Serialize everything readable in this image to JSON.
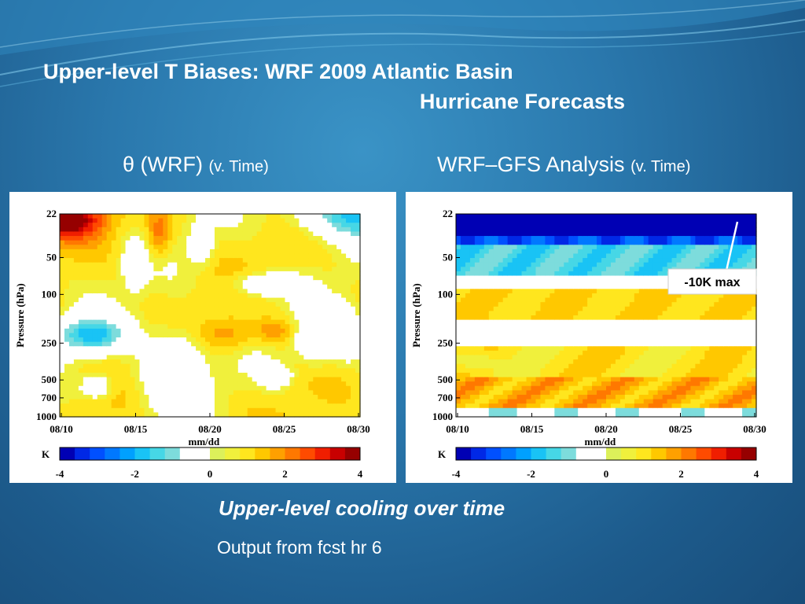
{
  "slide": {
    "title_line1": "Upper-level T Biases: WRF 2009 Atlantic Basin",
    "title_line2": "Hurricane Forecasts",
    "subtitle": "Upper-level cooling over time",
    "note": "Output from fcst hr 6"
  },
  "panels": [
    {
      "heading_main": "θ (WRF)",
      "heading_suffix": "(v. Time)"
    },
    {
      "heading_main": "WRF–GFS Analysis",
      "heading_suffix": "(v. Time)",
      "annotation": "-10K max"
    }
  ],
  "colors": {
    "colorbar": [
      "#0000b4",
      "#0028e6",
      "#0050ff",
      "#0078ff",
      "#00a0ff",
      "#19c3f5",
      "#46d7e6",
      "#7ddcdc",
      "#ffffff",
      "#ffffff",
      "#dcf05a",
      "#f0f03c",
      "#ffe61e",
      "#ffc800",
      "#ffa000",
      "#ff7800",
      "#ff4b00",
      "#f01e00",
      "#c80000",
      "#960000"
    ]
  },
  "chart_data": [
    {
      "type": "heatmap",
      "title": "",
      "xlabel": "mm/dd",
      "ylabel": "Pressure (hPa)",
      "x_ticks": [
        "08/10",
        "08/15",
        "08/20",
        "08/25",
        "08/30"
      ],
      "y_ticks": [
        "22",
        "50",
        "100",
        "250",
        "500",
        "700",
        "1000"
      ],
      "y_scale": "log",
      "colorbar_label": "K",
      "colorbar_ticks": [
        "-4",
        "-2",
        "0",
        "2",
        "4"
      ],
      "clim": [
        -4,
        4
      ],
      "values_estimated": [
        {
          "region": "top-left near 22 hPa, 08/10-08/13",
          "value": 3.5
        },
        {
          "region": "mid levels 50-150 hPa",
          "value": 1.0
        },
        {
          "region": "around 250 hPa, 08/10-08/14",
          "value": -1.5
        },
        {
          "region": "around 250 hPa, 08/20-08/26",
          "value": 2.0
        },
        {
          "region": "top-right near 22 hPa, 08/24-08/30",
          "value": -1.5
        }
      ]
    },
    {
      "type": "heatmap",
      "title": "",
      "xlabel": "mm/dd",
      "ylabel": "Pressure (hPa)",
      "x_ticks": [
        "08/10",
        "08/15",
        "08/20",
        "08/25",
        "08/30"
      ],
      "y_ticks": [
        "22",
        "50",
        "100",
        "250",
        "500",
        "700",
        "1000"
      ],
      "y_scale": "log",
      "colorbar_label": "K",
      "colorbar_ticks": [
        "-4",
        "-2",
        "0",
        "2",
        "4"
      ],
      "clim": [
        -4,
        4
      ],
      "annotation": "-10K max",
      "values_estimated": [
        {
          "region": "top layer 22-40 hPa, all dates",
          "value": -4.0
        },
        {
          "region": "50-80 hPa band",
          "value": -1.5
        },
        {
          "region": "100-150 hPa band",
          "value": 1.0
        },
        {
          "region": "300-450 hPa band",
          "value": 1.0
        },
        {
          "region": "near 700 hPa",
          "value": 2.0
        },
        {
          "region": "near 1000 hPa",
          "value": -0.5
        }
      ]
    }
  ]
}
